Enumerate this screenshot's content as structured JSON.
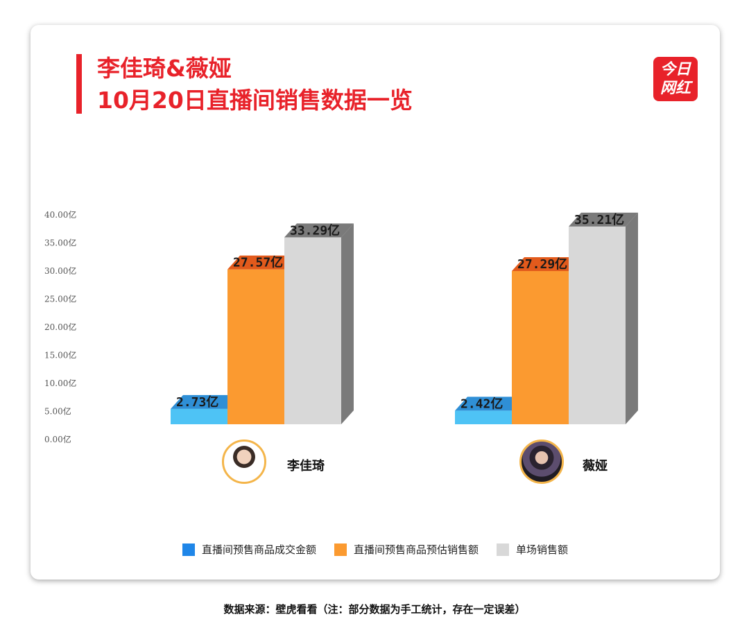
{
  "header": {
    "title_line1": "李佳琦&薇娅",
    "title_line2": "10月20日直播间销售数据一览",
    "logo_line1": "今日",
    "logo_line2": "网红"
  },
  "chart_data": {
    "type": "bar",
    "categories": [
      "李佳琦",
      "薇娅"
    ],
    "series": [
      {
        "name": "直播间预售商品成交金额",
        "values": [
          2.73,
          2.42
        ],
        "color": "#4ec3f5",
        "color_side": "#2f8fd6"
      },
      {
        "name": "直播间预售商品预估销售额",
        "values": [
          27.57,
          27.29
        ],
        "color": "#fb9a30",
        "color_side": "#e25a1c"
      },
      {
        "name": "单场销售额",
        "values": [
          33.29,
          35.21
        ],
        "color": "#d8d8d8",
        "color_side": "#7a7a7a"
      }
    ],
    "value_labels": [
      [
        "2.73亿",
        "2.42亿"
      ],
      [
        "27.57亿",
        "27.29亿"
      ],
      [
        "33.29亿",
        "35.21亿"
      ]
    ],
    "ylim": [
      0,
      40
    ],
    "yticks": [
      "0.00亿",
      "5.00亿",
      "10.00亿",
      "15.00亿",
      "20.00亿",
      "25.00亿",
      "30.00亿",
      "35.00亿",
      "40.00亿"
    ],
    "legend_position": "bottom",
    "grid": false
  },
  "people": [
    {
      "name": "李佳琦"
    },
    {
      "name": "薇娅"
    }
  ],
  "footer": "数据来源：壁虎看看（注：部分数据为手工统计，存在一定误差）"
}
